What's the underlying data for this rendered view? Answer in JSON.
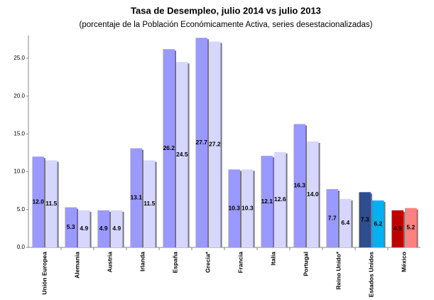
{
  "chart_data": {
    "type": "bar",
    "title": "Tasa de Desempleo, julio 2014 vs julio 2013",
    "subtitle": "(porcentaje de la Población Económicamente Activa, series desestacionalizadas)",
    "categories": [
      "Unión Europea",
      "Alemania",
      "Austria",
      "Irlanda",
      "España",
      "Grecia*",
      "Francia",
      "Italia",
      "Portugal",
      "Reino Unido*",
      "Estados Unidos",
      "México"
    ],
    "series": [
      {
        "values": [
          12.0,
          5.3,
          4.9,
          13.1,
          26.2,
          27.7,
          10.3,
          12.1,
          16.3,
          7.7,
          7.3,
          4.9
        ],
        "value_labels": [
          "12.0",
          "5.3",
          "4.9",
          "13.1",
          "26.2",
          "27.7",
          "10.3",
          "12.1",
          "16.3",
          "7.7",
          "7.3",
          "4.9"
        ],
        "colors": [
          "#9999ff",
          "#9999ff",
          "#9999ff",
          "#9999ff",
          "#9999ff",
          "#9999ff",
          "#9999ff",
          "#9999ff",
          "#9999ff",
          "#9999ff",
          "#2e4d8f",
          "#c00000"
        ]
      },
      {
        "values": [
          11.5,
          4.9,
          4.9,
          11.5,
          24.5,
          27.2,
          10.3,
          12.6,
          14.0,
          6.4,
          6.2,
          5.2
        ],
        "value_labels": [
          "11.5",
          "4.9",
          "4.9",
          "11.5",
          "24.5",
          "27.2",
          "10.3",
          "12.6",
          "14.0",
          "6.4",
          "6.2",
          "5.2"
        ],
        "colors": [
          "#d6d6ff",
          "#d6d6ff",
          "#d6d6ff",
          "#d6d6ff",
          "#d6d6ff",
          "#d6d6ff",
          "#d6d6ff",
          "#d6d6ff",
          "#d6d6ff",
          "#d6d6ff",
          "#00b0f0",
          "#ff8080"
        ]
      }
    ],
    "ylim": [
      0,
      28
    ],
    "yticks": [
      {
        "value": 0,
        "label": "0.0"
      },
      {
        "value": 5,
        "label": "5.0"
      },
      {
        "value": 10,
        "label": "10.0"
      },
      {
        "value": 15,
        "label": "15.0"
      },
      {
        "value": 20,
        "label": "20.0"
      },
      {
        "value": 25,
        "label": "25.0"
      }
    ],
    "grid": false
  }
}
